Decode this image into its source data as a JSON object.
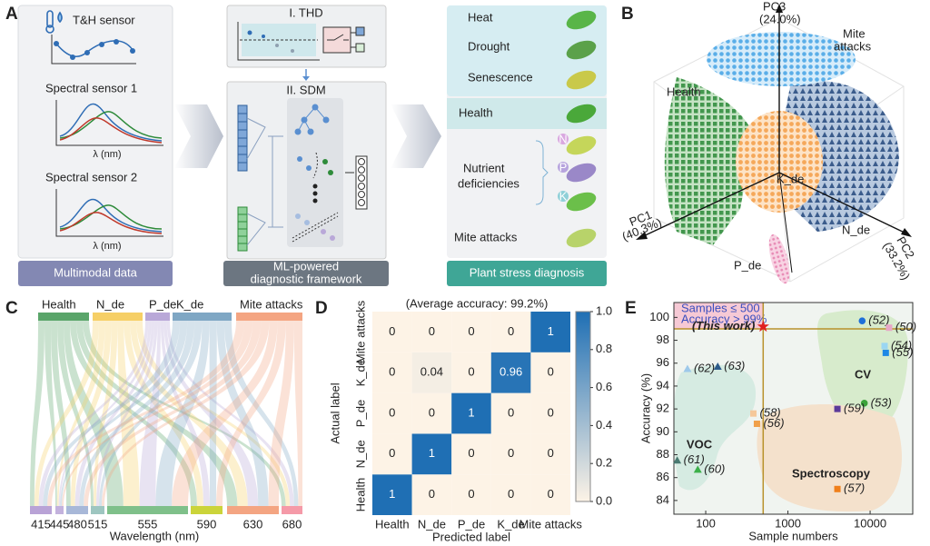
{
  "panel_labels": [
    "A",
    "B",
    "C",
    "D",
    "E"
  ],
  "panel_a": {
    "multimodal": {
      "th_sensor": "T&H sensor",
      "spectral_1": "Spectral sensor 1",
      "spectral_2": "Spectral sensor 2",
      "axis_label": "λ (nm)",
      "caption": "Multimodal data"
    },
    "framework": {
      "thd": "I. THD",
      "sdm": "II. SDM",
      "caption_lines": [
        "ML-powered",
        "diagnostic framework"
      ]
    },
    "diagnosis": {
      "stresses": [
        "Heat",
        "Drought",
        "Senescence"
      ],
      "health": "Health",
      "nutrient_lines": [
        "Nutrient",
        "deficiencies"
      ],
      "nutrients": [
        "N",
        "P",
        "K"
      ],
      "mite": "Mite attacks",
      "caption": "Plant stress diagnosis"
    }
  },
  "panel_b": {
    "pc1": "PC1",
    "pc1_var": "(40.3%)",
    "pc2": "PC2",
    "pc2_var": "(33.2%)",
    "pc3": "PC3",
    "pc3_var": "(24.0%)",
    "health": "Health",
    "k_de": "K_de",
    "n_de": "N_de",
    "p_de": "P_de",
    "mite_lines": [
      "Mite",
      "attacks"
    ]
  },
  "panel_c": {
    "top": [
      "Health",
      "N_de",
      "P_de",
      "K_de",
      "Mite attacks"
    ],
    "wavelengths": [
      415,
      445,
      480,
      515,
      555,
      590,
      630,
      680
    ],
    "xlabel": "Wavelength (nm)"
  },
  "chart_data": [
    {
      "type": "heatmap",
      "title": "(Average accuracy: 99.2%)",
      "x_categories": [
        "Health",
        "N_de",
        "P_de",
        "K_de",
        "Mite attacks"
      ],
      "y_categories": [
        "Health",
        "N_de",
        "P_de",
        "K_de",
        "Mite attacks"
      ],
      "values": [
        [
          1,
          0,
          0,
          0,
          0
        ],
        [
          0,
          1,
          0,
          0,
          0
        ],
        [
          0,
          0,
          1,
          0,
          0
        ],
        [
          0,
          0.04,
          0,
          0.96,
          0
        ],
        [
          0,
          0,
          0,
          0,
          1
        ]
      ],
      "xlabel": "Predicted label",
      "ylabel": "Actual label",
      "colorbar": {
        "lim": [
          0,
          1
        ],
        "ticks": [
          {
            "value": 0,
            "label": "0.0"
          },
          0.2,
          0.4,
          0.6,
          0.8,
          {
            "value": 1,
            "label": "1.0"
          }
        ]
      },
      "colors": [
        "#fdf3e6",
        "#1f6fb4"
      ]
    },
    {
      "type": "scatter",
      "xlabel": "Sample numbers",
      "ylabel": "Accuracy (%)",
      "xlog": true,
      "xlim": [
        41,
        33000
      ],
      "ylim": [
        82.8,
        101.3
      ],
      "xticks": [
        100,
        1000,
        10000
      ],
      "yticks": [
        84,
        86,
        88,
        90,
        92,
        94,
        96,
        98,
        100
      ],
      "thresholds": {
        "x": 500,
        "y": 99
      },
      "annotations": [
        "Samples ≤ 500",
        "Accuracy > 99%"
      ],
      "regions": [
        "CV",
        "VOC",
        "Spectroscopy"
      ],
      "series": [
        {
          "name": "(52)",
          "color": "#1e6fd9",
          "marker": "circle",
          "x": [
            8000
          ],
          "values": [
            99.7
          ]
        },
        {
          "name": "(50)",
          "color": "#e8a6c6",
          "marker": "square",
          "x": [
            17000
          ],
          "values": [
            99.1
          ]
        },
        {
          "name": "(54)",
          "color": "#9ad6f2",
          "marker": "square",
          "x": [
            15000
          ],
          "values": [
            97.5
          ]
        },
        {
          "name": "(55)",
          "color": "#1e88e5",
          "marker": "square",
          "x": [
            15500
          ],
          "values": [
            96.9
          ]
        },
        {
          "name": "(53)",
          "color": "#3aa33a",
          "marker": "circle",
          "x": [
            8500
          ],
          "values": [
            92.5
          ]
        },
        {
          "name": "(59)",
          "color": "#5b3a9a",
          "marker": "square",
          "x": [
            4000
          ],
          "values": [
            92.0
          ]
        },
        {
          "name": "(62)",
          "color": "#9ec9ea",
          "marker": "triangle",
          "x": [
            60
          ],
          "values": [
            95.5
          ]
        },
        {
          "name": "(63)",
          "color": "#2d5b8a",
          "marker": "triangle",
          "x": [
            140
          ],
          "values": [
            95.7
          ]
        },
        {
          "name": "(58)",
          "color": "#f5c89a",
          "marker": "square",
          "x": [
            380
          ],
          "values": [
            91.6
          ]
        },
        {
          "name": "(56)",
          "color": "#f0a04a",
          "marker": "square",
          "x": [
            420
          ],
          "values": [
            90.7
          ]
        },
        {
          "name": "(61)",
          "color": "#4a7a72",
          "marker": "triangle",
          "x": [
            45
          ],
          "values": [
            87.5
          ]
        },
        {
          "name": "(60)",
          "color": "#3cb04a",
          "marker": "triangle",
          "x": [
            80
          ],
          "values": [
            86.7
          ]
        },
        {
          "name": "(57)",
          "color": "#f07f1a",
          "marker": "square",
          "x": [
            4000
          ],
          "values": [
            85.0
          ]
        },
        {
          "name": "(This work)",
          "color": "#e02020",
          "marker": "star",
          "x": [
            500
          ],
          "values": [
            99.2
          ]
        }
      ]
    }
  ]
}
